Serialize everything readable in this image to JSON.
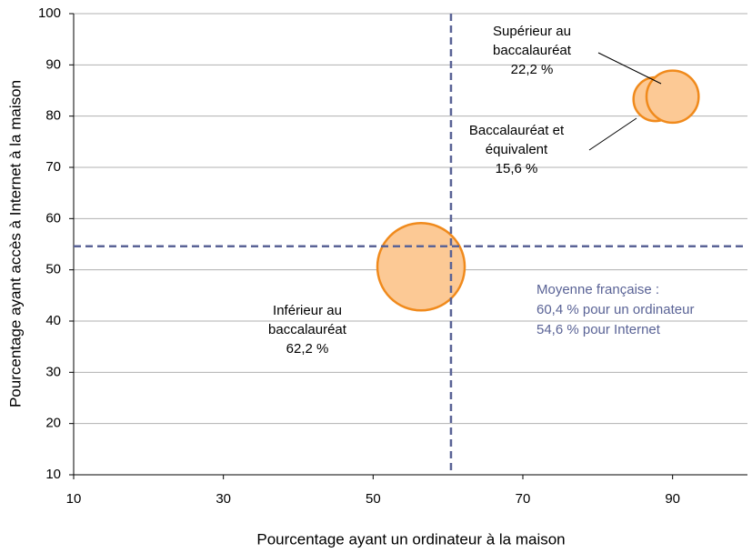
{
  "chart_data": {
    "type": "bubble",
    "x_label": "Pourcentage ayant un ordinateur à la maison",
    "y_label": "Pourcentage ayant accès à Internet à la maison",
    "xlim": [
      10,
      100
    ],
    "xticks": [
      10,
      30,
      50,
      70,
      90
    ],
    "ylim": [
      10,
      100
    ],
    "yticks": [
      10,
      20,
      30,
      40,
      50,
      60,
      70,
      80,
      90,
      100
    ],
    "grid": true,
    "series": [
      {
        "color": "#fcc995",
        "edge_color": "#f08a1c",
        "x": [
          56.4,
          87.7,
          90
        ],
        "values": [
          50.6,
          83.3,
          83.8
        ],
        "sizes": [
          62.2,
          15.6,
          22.2
        ],
        "size_labels": [
          "62,2 %",
          "15,6 %",
          "22,2 %"
        ],
        "labels": [
          [
            "Inférieur au",
            "baccalauréat"
          ],
          [
            "Baccalauréat et",
            "équivalent"
          ],
          [
            "Supérieur au",
            "baccalauréat"
          ]
        ]
      }
    ],
    "mean_x": 60.4,
    "mean_y": 54.6,
    "mean_color": "#5a6396",
    "mean_text": [
      "Moyenne française :",
      "60,4 % pour un ordinateur",
      "54,6 % pour Internet"
    ]
  }
}
